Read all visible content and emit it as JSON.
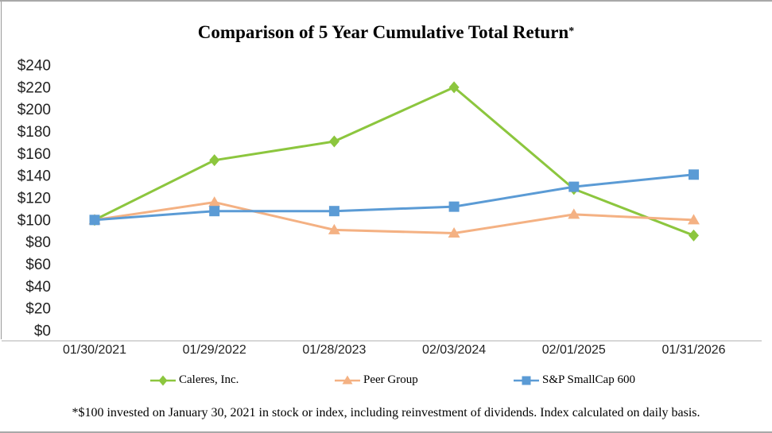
{
  "title": {
    "text": "Comparison of 5 Year Cumulative Total Return",
    "footnote_marker": "*"
  },
  "footnote": "*$100 invested on January 30, 2021 in stock or index, including reinvestment of dividends. Index calculated on daily basis.",
  "chart_data": {
    "type": "line",
    "title": "Comparison of 5 Year Cumulative Total Return*",
    "x_labels": [
      "01/30/2021",
      "01/29/2022",
      "01/28/2023",
      "02/03/2024",
      "02/01/2025",
      "01/31/2026"
    ],
    "y_tick_labels": [
      "$0",
      "$20",
      "$40",
      "$60",
      "$80",
      "$100",
      "$120",
      "$140",
      "$160",
      "$180",
      "$200",
      "$220",
      "$240"
    ],
    "ylim": [
      0,
      240
    ],
    "ytick_step": 20,
    "grid": false,
    "legend_position": "bottom",
    "axis_line_color": "#bfbfbf",
    "series": [
      {
        "name": "Caleres, Inc.",
        "marker": "diamond",
        "color": "#8cc63e",
        "values": [
          100,
          154,
          171,
          220,
          128,
          86
        ]
      },
      {
        "name": "Peer Group",
        "marker": "triangle",
        "color": "#f4b183",
        "values": [
          100,
          116,
          91,
          88,
          105,
          100
        ]
      },
      {
        "name": "S&P SmallCap 600",
        "marker": "square",
        "color": "#5b9bd5",
        "values": [
          100,
          108,
          108,
          112,
          130,
          141
        ]
      }
    ]
  }
}
